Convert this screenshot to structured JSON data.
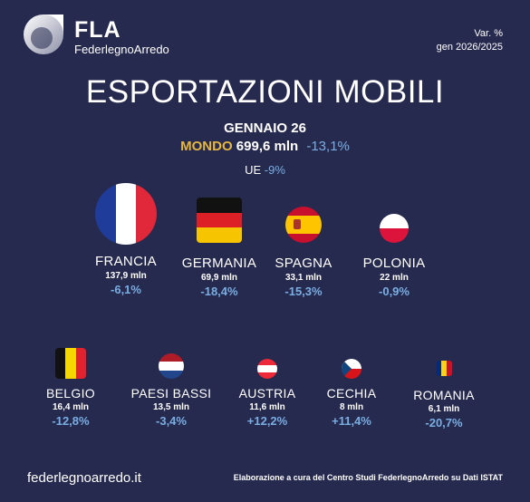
{
  "brand": {
    "name": "FLA",
    "full_name": "FederlegnoArredo"
  },
  "header_right": {
    "label": "Var. %",
    "period": "gen 2026/2025"
  },
  "title": "ESPORTAZIONI MOBILI",
  "subtitle": "GENNAIO 26",
  "world": {
    "label": "MONDO",
    "value": "699,6 mln",
    "change": "-13,1%"
  },
  "eu": {
    "label": "UE",
    "change": "-9%"
  },
  "countries_row1": [
    {
      "name": "FRANCIA",
      "value": "137,9 mln",
      "change": "-6,1%",
      "flag_icon": "france-flag-icon"
    },
    {
      "name": "GERMANIA",
      "value": "69,9 mln",
      "change": "-18,4%",
      "flag_icon": "germany-flag-icon"
    },
    {
      "name": "SPAGNA",
      "value": "33,1 mln",
      "change": "-15,3%",
      "flag_icon": "spain-flag-icon"
    },
    {
      "name": "POLONIA",
      "value": "22 mln",
      "change": "-0,9%",
      "flag_icon": "poland-flag-icon"
    }
  ],
  "countries_row2": [
    {
      "name": "BELGIO",
      "value": "16,4 mln",
      "change": "-12,8%",
      "flag_icon": "belgium-flag-icon"
    },
    {
      "name": "PAESI BASSI",
      "value": "13,5 mln",
      "change": "-3,4%",
      "flag_icon": "netherlands-flag-icon"
    },
    {
      "name": "AUSTRIA",
      "value": "11,6 mln",
      "change": "+12,2%",
      "flag_icon": "austria-flag-icon"
    },
    {
      "name": "CECHIA",
      "value": "8 mln",
      "change": "+11,4%",
      "flag_icon": "czechia-flag-icon"
    },
    {
      "name": "ROMANIA",
      "value": "6,1 mln",
      "change": "-20,7%",
      "flag_icon": "romania-flag-icon"
    }
  ],
  "footer": {
    "website": "federlegnoarredo.it",
    "source": "Elaborazione a cura del Centro Studi FederlegnoArredo su Dati ISTAT"
  },
  "colors": {
    "background": "#272a4f",
    "accent_world": "#e7b63e",
    "change_blue": "#79aee3"
  }
}
